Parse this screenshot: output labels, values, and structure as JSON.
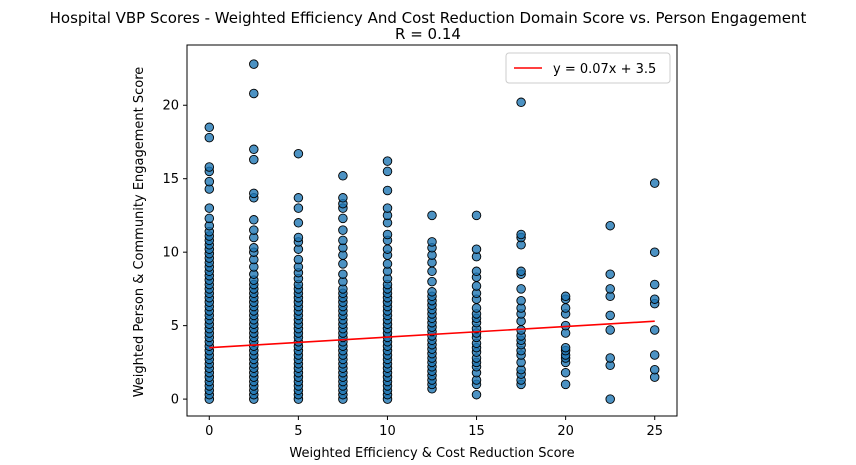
{
  "chart_data": {
    "type": "scatter",
    "title": "Hospital VBP Scores - Weighted Efficiency And Cost Reduction Domain Score vs. Person Engagement",
    "subtitle": "R = 0.14",
    "xlabel": "Weighted Efficiency & Cost Reduction Score",
    "ylabel": "Weighted Person & Community Engagement Score",
    "xlim": [
      -1.25,
      26.25
    ],
    "ylim": [
      -1.15,
      24.1
    ],
    "xticks": [
      0,
      5,
      10,
      15,
      20,
      25
    ],
    "yticks": [
      0,
      5,
      10,
      15,
      20
    ],
    "grid": false,
    "legend_position": "top-right",
    "colors": {
      "points": "#1f77b4",
      "point_edge": "#000000",
      "fit_line": "#ff0000"
    },
    "series": [
      {
        "type": "scatter",
        "points": [
          [
            0,
            0
          ],
          [
            0,
            0.3
          ],
          [
            0,
            0.6
          ],
          [
            0,
            0.9
          ],
          [
            0,
            1.2
          ],
          [
            0,
            1.5
          ],
          [
            0,
            1.8
          ],
          [
            0,
            2.1
          ],
          [
            0,
            2.4
          ],
          [
            0,
            2.7
          ],
          [
            0,
            3.0
          ],
          [
            0,
            3.3
          ],
          [
            0,
            3.6
          ],
          [
            0,
            3.9
          ],
          [
            0,
            4.2
          ],
          [
            0,
            4.5
          ],
          [
            0,
            4.8
          ],
          [
            0,
            5.1
          ],
          [
            0,
            5.4
          ],
          [
            0,
            5.7
          ],
          [
            0,
            6.0
          ],
          [
            0,
            6.3
          ],
          [
            0,
            6.6
          ],
          [
            0,
            6.9
          ],
          [
            0,
            7.2
          ],
          [
            0,
            7.5
          ],
          [
            0,
            7.8
          ],
          [
            0,
            8.1
          ],
          [
            0,
            8.4
          ],
          [
            0,
            8.7
          ],
          [
            0,
            9.0
          ],
          [
            0,
            9.3
          ],
          [
            0,
            9.6
          ],
          [
            0,
            9.9
          ],
          [
            0,
            10.2
          ],
          [
            0,
            10.5
          ],
          [
            0,
            10.8
          ],
          [
            0,
            11.1
          ],
          [
            0,
            11.4
          ],
          [
            0,
            11.8
          ],
          [
            0,
            12.3
          ],
          [
            0,
            13.0
          ],
          [
            0,
            14.3
          ],
          [
            0,
            14.8
          ],
          [
            0,
            15.5
          ],
          [
            0,
            15.8
          ],
          [
            0,
            17.8
          ],
          [
            0,
            18.5
          ],
          [
            2.5,
            0
          ],
          [
            2.5,
            0.3
          ],
          [
            2.5,
            0.6
          ],
          [
            2.5,
            0.9
          ],
          [
            2.5,
            1.2
          ],
          [
            2.5,
            1.5
          ],
          [
            2.5,
            1.8
          ],
          [
            2.5,
            2.1
          ],
          [
            2.5,
            2.4
          ],
          [
            2.5,
            2.7
          ],
          [
            2.5,
            3.0
          ],
          [
            2.5,
            3.3
          ],
          [
            2.5,
            3.6
          ],
          [
            2.5,
            3.9
          ],
          [
            2.5,
            4.2
          ],
          [
            2.5,
            4.5
          ],
          [
            2.5,
            4.8
          ],
          [
            2.5,
            5.1
          ],
          [
            2.5,
            5.4
          ],
          [
            2.5,
            5.7
          ],
          [
            2.5,
            6.0
          ],
          [
            2.5,
            6.3
          ],
          [
            2.5,
            6.6
          ],
          [
            2.5,
            6.9
          ],
          [
            2.5,
            7.2
          ],
          [
            2.5,
            7.5
          ],
          [
            2.5,
            7.8
          ],
          [
            2.5,
            8.1
          ],
          [
            2.5,
            8.5
          ],
          [
            2.5,
            9.0
          ],
          [
            2.5,
            9.5
          ],
          [
            2.5,
            10.0
          ],
          [
            2.5,
            10.3
          ],
          [
            2.5,
            11.0
          ],
          [
            2.5,
            11.5
          ],
          [
            2.5,
            12.2
          ],
          [
            2.5,
            13.7
          ],
          [
            2.5,
            14.0
          ],
          [
            2.5,
            16.3
          ],
          [
            2.5,
            17.0
          ],
          [
            2.5,
            20.8
          ],
          [
            2.5,
            22.8
          ],
          [
            5,
            0
          ],
          [
            5,
            0.3
          ],
          [
            5,
            0.6
          ],
          [
            5,
            0.9
          ],
          [
            5,
            1.2
          ],
          [
            5,
            1.5
          ],
          [
            5,
            1.8
          ],
          [
            5,
            2.1
          ],
          [
            5,
            2.4
          ],
          [
            5,
            2.7
          ],
          [
            5,
            3.0
          ],
          [
            5,
            3.3
          ],
          [
            5,
            3.6
          ],
          [
            5,
            3.9
          ],
          [
            5,
            4.2
          ],
          [
            5,
            4.5
          ],
          [
            5,
            4.8
          ],
          [
            5,
            5.1
          ],
          [
            5,
            5.4
          ],
          [
            5,
            5.7
          ],
          [
            5,
            6.0
          ],
          [
            5,
            6.3
          ],
          [
            5,
            6.6
          ],
          [
            5,
            6.9
          ],
          [
            5,
            7.2
          ],
          [
            5,
            7.5
          ],
          [
            5,
            7.8
          ],
          [
            5,
            8.2
          ],
          [
            5,
            8.6
          ],
          [
            5,
            9.0
          ],
          [
            5,
            9.5
          ],
          [
            5,
            10.2
          ],
          [
            5,
            10.7
          ],
          [
            5,
            11.0
          ],
          [
            5,
            12.0
          ],
          [
            5,
            13.0
          ],
          [
            5,
            13.7
          ],
          [
            5,
            16.7
          ],
          [
            7.5,
            0
          ],
          [
            7.5,
            0.3
          ],
          [
            7.5,
            0.6
          ],
          [
            7.5,
            0.9
          ],
          [
            7.5,
            1.2
          ],
          [
            7.5,
            1.5
          ],
          [
            7.5,
            1.8
          ],
          [
            7.5,
            2.1
          ],
          [
            7.5,
            2.4
          ],
          [
            7.5,
            2.7
          ],
          [
            7.5,
            3.0
          ],
          [
            7.5,
            3.3
          ],
          [
            7.5,
            3.6
          ],
          [
            7.5,
            3.9
          ],
          [
            7.5,
            4.2
          ],
          [
            7.5,
            4.5
          ],
          [
            7.5,
            4.8
          ],
          [
            7.5,
            5.1
          ],
          [
            7.5,
            5.4
          ],
          [
            7.5,
            5.7
          ],
          [
            7.5,
            6.0
          ],
          [
            7.5,
            6.3
          ],
          [
            7.5,
            6.6
          ],
          [
            7.5,
            6.9
          ],
          [
            7.5,
            7.2
          ],
          [
            7.5,
            7.5
          ],
          [
            7.5,
            8.0
          ],
          [
            7.5,
            8.5
          ],
          [
            7.5,
            9.2
          ],
          [
            7.5,
            9.8
          ],
          [
            7.5,
            10.3
          ],
          [
            7.5,
            10.8
          ],
          [
            7.5,
            11.5
          ],
          [
            7.5,
            12.3
          ],
          [
            7.5,
            13.0
          ],
          [
            7.5,
            13.3
          ],
          [
            7.5,
            13.7
          ],
          [
            7.5,
            15.2
          ],
          [
            10,
            0
          ],
          [
            10,
            0.3
          ],
          [
            10,
            0.6
          ],
          [
            10,
            0.9
          ],
          [
            10,
            1.2
          ],
          [
            10,
            1.5
          ],
          [
            10,
            1.8
          ],
          [
            10,
            2.1
          ],
          [
            10,
            2.4
          ],
          [
            10,
            2.7
          ],
          [
            10,
            3.0
          ],
          [
            10,
            3.3
          ],
          [
            10,
            3.6
          ],
          [
            10,
            3.9
          ],
          [
            10,
            4.2
          ],
          [
            10,
            4.5
          ],
          [
            10,
            4.8
          ],
          [
            10,
            5.1
          ],
          [
            10,
            5.4
          ],
          [
            10,
            5.7
          ],
          [
            10,
            6.0
          ],
          [
            10,
            6.3
          ],
          [
            10,
            6.6
          ],
          [
            10,
            6.9
          ],
          [
            10,
            7.2
          ],
          [
            10,
            7.5
          ],
          [
            10,
            7.8
          ],
          [
            10,
            8.2
          ],
          [
            10,
            8.7
          ],
          [
            10,
            9.2
          ],
          [
            10,
            9.8
          ],
          [
            10,
            10.2
          ],
          [
            10,
            10.8
          ],
          [
            10,
            11.2
          ],
          [
            10,
            12.0
          ],
          [
            10,
            12.5
          ],
          [
            10,
            13.0
          ],
          [
            10,
            14.2
          ],
          [
            10,
            15.5
          ],
          [
            10,
            16.2
          ],
          [
            12.5,
            0.7
          ],
          [
            12.5,
            1.0
          ],
          [
            12.5,
            1.3
          ],
          [
            12.5,
            1.6
          ],
          [
            12.5,
            1.9
          ],
          [
            12.5,
            2.2
          ],
          [
            12.5,
            2.5
          ],
          [
            12.5,
            2.8
          ],
          [
            12.5,
            3.1
          ],
          [
            12.5,
            3.4
          ],
          [
            12.5,
            3.7
          ],
          [
            12.5,
            4.0
          ],
          [
            12.5,
            4.3
          ],
          [
            12.5,
            4.6
          ],
          [
            12.5,
            4.9
          ],
          [
            12.5,
            5.2
          ],
          [
            12.5,
            5.5
          ],
          [
            12.5,
            5.8
          ],
          [
            12.5,
            6.1
          ],
          [
            12.5,
            6.4
          ],
          [
            12.5,
            6.7
          ],
          [
            12.5,
            7.0
          ],
          [
            12.5,
            7.3
          ],
          [
            12.5,
            8.0
          ],
          [
            12.5,
            8.7
          ],
          [
            12.5,
            9.3
          ],
          [
            12.5,
            9.8
          ],
          [
            12.5,
            10.3
          ],
          [
            12.5,
            10.7
          ],
          [
            12.5,
            12.5
          ],
          [
            15,
            0.3
          ],
          [
            15,
            1.0
          ],
          [
            15,
            1.3
          ],
          [
            15,
            1.8
          ],
          [
            15,
            2.2
          ],
          [
            15,
            2.5
          ],
          [
            15,
            2.8
          ],
          [
            15,
            3.2
          ],
          [
            15,
            3.5
          ],
          [
            15,
            3.8
          ],
          [
            15,
            4.2
          ],
          [
            15,
            4.5
          ],
          [
            15,
            4.8
          ],
          [
            15,
            5.2
          ],
          [
            15,
            5.5
          ],
          [
            15,
            5.8
          ],
          [
            15,
            6.2
          ],
          [
            15,
            6.8
          ],
          [
            15,
            7.2
          ],
          [
            15,
            7.7
          ],
          [
            15,
            8.3
          ],
          [
            15,
            8.7
          ],
          [
            15,
            9.7
          ],
          [
            15,
            10.2
          ],
          [
            15,
            12.5
          ],
          [
            17.5,
            1.0
          ],
          [
            17.5,
            1.3
          ],
          [
            17.5,
            1.7
          ],
          [
            17.5,
            2.0
          ],
          [
            17.5,
            2.5
          ],
          [
            17.5,
            3.0
          ],
          [
            17.5,
            3.3
          ],
          [
            17.5,
            3.7
          ],
          [
            17.5,
            4.0
          ],
          [
            17.5,
            4.3
          ],
          [
            17.5,
            4.7
          ],
          [
            17.5,
            5.3
          ],
          [
            17.5,
            5.8
          ],
          [
            17.5,
            6.2
          ],
          [
            17.5,
            6.7
          ],
          [
            17.5,
            7.5
          ],
          [
            17.5,
            8.5
          ],
          [
            17.5,
            8.7
          ],
          [
            17.5,
            10.5
          ],
          [
            17.5,
            11.0
          ],
          [
            17.5,
            11.2
          ],
          [
            17.5,
            20.2
          ],
          [
            20,
            1.0
          ],
          [
            20,
            1.8
          ],
          [
            20,
            2.5
          ],
          [
            20,
            2.8
          ],
          [
            20,
            3.0
          ],
          [
            20,
            3.3
          ],
          [
            20,
            3.5
          ],
          [
            20,
            4.5
          ],
          [
            20,
            5.0
          ],
          [
            20,
            5.8
          ],
          [
            20,
            6.2
          ],
          [
            20,
            6.8
          ],
          [
            20,
            7.0
          ],
          [
            22.5,
            0
          ],
          [
            22.5,
            2.3
          ],
          [
            22.5,
            2.8
          ],
          [
            22.5,
            4.7
          ],
          [
            22.5,
            5.7
          ],
          [
            22.5,
            7.0
          ],
          [
            22.5,
            7.5
          ],
          [
            22.5,
            8.5
          ],
          [
            22.5,
            11.8
          ],
          [
            25,
            1.5
          ],
          [
            25,
            2.0
          ],
          [
            25,
            3.0
          ],
          [
            25,
            4.7
          ],
          [
            25,
            6.5
          ],
          [
            25,
            6.8
          ],
          [
            25,
            7.8
          ],
          [
            25,
            10.0
          ],
          [
            25,
            14.7
          ]
        ]
      },
      {
        "type": "line",
        "name": "y = 0.07x + 3.5",
        "x": [
          0,
          25
        ],
        "y": [
          3.5,
          5.3
        ]
      }
    ]
  }
}
